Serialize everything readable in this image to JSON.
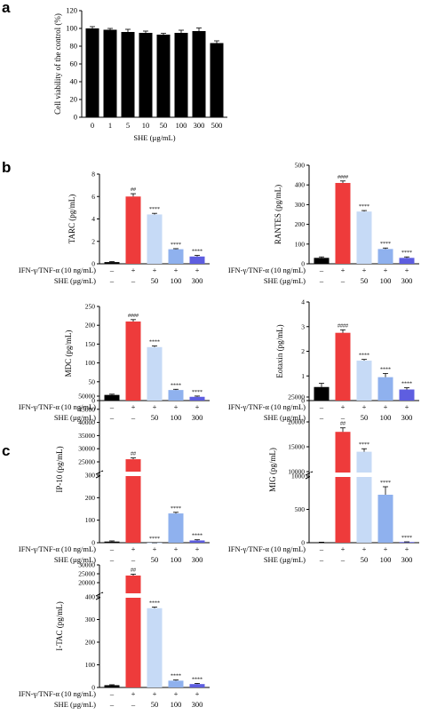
{
  "labels": {
    "panel_a": "a",
    "panel_b": "b",
    "panel_c": "c"
  },
  "colors": {
    "control": "#000000",
    "stim": "#ee3b3b",
    "she50": "#c6daf6",
    "she100": "#8fb1ee",
    "she300": "#5e5ee0"
  },
  "conditions": {
    "row1_label": "IFN-γ/TNF-α (10 ng/mL)",
    "row2_label": "SHE (µg/mL)",
    "row1_values": [
      "–",
      "+",
      "+",
      "+",
      "+"
    ],
    "row2_values": [
      "–",
      "–",
      "50",
      "100",
      "300"
    ]
  },
  "chart_data": [
    {
      "panel": "a",
      "type": "bar",
      "ylabel": "Cell viability of the control (%)",
      "xlabel": "SHE (µg/mL)",
      "categories": [
        "0",
        "1",
        "5",
        "10",
        "50",
        "100",
        "300",
        "500"
      ],
      "values": [
        100,
        98.5,
        96,
        95,
        93,
        95,
        97,
        83.5
      ],
      "errors": [
        2,
        1.5,
        3,
        2,
        1.5,
        3,
        3.5,
        2.5
      ],
      "ylim": [
        0,
        120
      ],
      "yticks": [
        "0",
        "20",
        "40",
        "60",
        "80",
        "100",
        "120"
      ]
    },
    {
      "panel": "b",
      "type": "bar",
      "ylabel": "TARC (pg/mL)",
      "values": [
        0.15,
        6.0,
        4.4,
        1.3,
        0.65
      ],
      "errors": [
        0.05,
        0.25,
        0.1,
        0.05,
        0.1
      ],
      "ylim": [
        0,
        8
      ],
      "yticks": [
        "0",
        "2",
        "4",
        "6",
        "8"
      ],
      "significance": [
        "",
        "##",
        "****",
        "****",
        "****"
      ]
    },
    {
      "panel": "b",
      "type": "bar",
      "ylabel": "RANTES (pg/mL)",
      "values": [
        30,
        410,
        265,
        75,
        30
      ],
      "errors": [
        5,
        10,
        5,
        5,
        5
      ],
      "ylim": [
        0,
        500
      ],
      "yticks": [
        "0",
        "100",
        "200",
        "300",
        "400",
        "500"
      ],
      "significance": [
        "",
        "####",
        "****",
        "****",
        "****"
      ]
    },
    {
      "panel": "b",
      "type": "bar",
      "ylabel": "MDC (pg/mL)",
      "values": [
        15,
        210,
        142,
        28,
        10
      ],
      "errors": [
        2,
        5,
        3,
        2,
        2
      ],
      "ylim": [
        0,
        250
      ],
      "yticks": [
        "0",
        "50",
        "100",
        "150",
        "200",
        "250"
      ],
      "significance": [
        "",
        "####",
        "****",
        "****",
        "****"
      ]
    },
    {
      "panel": "b",
      "type": "bar",
      "ylabel": "Eotaxin (pg/mL)",
      "values": [
        0.55,
        2.75,
        1.62,
        0.95,
        0.45
      ],
      "errors": [
        0.15,
        0.12,
        0.05,
        0.15,
        0.07
      ],
      "ylim": [
        0,
        4
      ],
      "yticks": [
        "0",
        "1",
        "2",
        "3",
        "4"
      ],
      "significance": [
        "",
        "####",
        "****",
        "****",
        "****"
      ]
    },
    {
      "panel": "c",
      "type": "bar",
      "ylabel": "IP-10 (pg/mL)",
      "values": [
        5,
        26000,
        320,
        130,
        10
      ],
      "errors": [
        3,
        500,
        5,
        5,
        3
      ],
      "ylim": [
        0,
        50000
      ],
      "yticks": [
        "0",
        "100",
        "200",
        "300",
        "25000",
        "30000",
        "35000",
        "40000",
        "45000",
        "50000"
      ],
      "significance": [
        "",
        "##",
        "****",
        "****",
        "****"
      ]
    },
    {
      "panel": "c",
      "type": "bar",
      "ylabel": "MIG (pg/mL)",
      "values": [
        5,
        18000,
        14000,
        720,
        10
      ],
      "errors": [
        3,
        800,
        600,
        120,
        3
      ],
      "ylim": [
        0,
        25000
      ],
      "yticks": [
        "0",
        "500",
        "1000",
        "10000",
        "15000",
        "20000",
        "25000"
      ],
      "significance": [
        "",
        "##",
        "****",
        "****",
        "****"
      ]
    },
    {
      "panel": "c",
      "type": "bar",
      "ylabel": "I-TAC (pg/mL)",
      "values": [
        10,
        24000,
        350,
        30,
        15
      ],
      "errors": [
        2,
        800,
        5,
        3,
        3
      ],
      "ylim": [
        0,
        30000
      ],
      "yticks": [
        "0",
        "100",
        "200",
        "300",
        "400",
        "20000",
        "25000",
        "30000"
      ],
      "significance": [
        "",
        "##",
        "****",
        "****",
        "****"
      ]
    }
  ]
}
